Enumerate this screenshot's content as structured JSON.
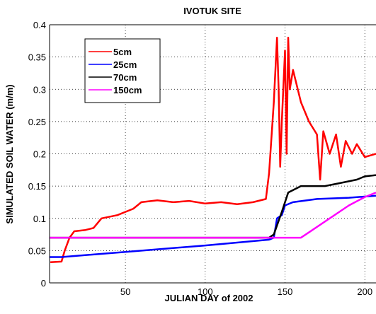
{
  "chart_data": {
    "type": "line",
    "title": "IVOTUK SITE",
    "x_label": "JULIAN DAY of 2002",
    "y_label": "SIMULATED SOIL WATER (m/m)",
    "xlim": [
      2.5,
      207
    ],
    "ylim": [
      0,
      0.4
    ],
    "xticks": [
      50,
      100,
      150,
      200
    ],
    "yticks": [
      0,
      0.05,
      0.1,
      0.15,
      0.2,
      0.25,
      0.3,
      0.35,
      0.4
    ],
    "grid": true,
    "legend": "upper left",
    "series": [
      {
        "name": "5cm",
        "color": "#ff0000",
        "x": [
          3,
          10,
          12,
          15,
          18,
          25,
          30,
          35,
          45,
          50,
          55,
          60,
          70,
          80,
          90,
          100,
          110,
          120,
          130,
          138,
          140,
          143,
          145,
          146,
          147,
          148,
          150,
          151,
          152,
          153,
          155,
          160,
          165,
          170,
          172,
          174,
          178,
          182,
          185,
          188,
          192,
          195,
          200,
          207
        ],
        "values": [
          0.032,
          0.033,
          0.05,
          0.07,
          0.08,
          0.082,
          0.085,
          0.1,
          0.105,
          0.11,
          0.115,
          0.125,
          0.128,
          0.125,
          0.127,
          0.123,
          0.125,
          0.122,
          0.125,
          0.13,
          0.17,
          0.28,
          0.38,
          0.3,
          0.18,
          0.25,
          0.36,
          0.2,
          0.38,
          0.3,
          0.33,
          0.28,
          0.25,
          0.23,
          0.16,
          0.235,
          0.2,
          0.23,
          0.18,
          0.22,
          0.2,
          0.215,
          0.195,
          0.2
        ]
      },
      {
        "name": "25cm",
        "color": "#0000ff",
        "x": [
          2.5,
          10,
          50,
          100,
          140,
          143,
          145,
          148,
          150,
          155,
          170,
          190,
          207
        ],
        "values": [
          0.04,
          0.04,
          0.048,
          0.058,
          0.067,
          0.07,
          0.1,
          0.105,
          0.12,
          0.125,
          0.13,
          0.132,
          0.135
        ]
      },
      {
        "name": "70cm",
        "color": "#000000",
        "x": [
          2.5,
          140,
          143,
          148,
          152,
          160,
          175,
          185,
          195,
          200,
          207
        ],
        "values": [
          0.07,
          0.07,
          0.075,
          0.11,
          0.14,
          0.15,
          0.15,
          0.155,
          0.16,
          0.165,
          0.167
        ]
      },
      {
        "name": "150cm",
        "color": "#ff00ff",
        "x": [
          2.5,
          160,
          163,
          190,
          200,
          207
        ],
        "values": [
          0.07,
          0.07,
          0.075,
          0.12,
          0.133,
          0.14
        ]
      }
    ]
  }
}
